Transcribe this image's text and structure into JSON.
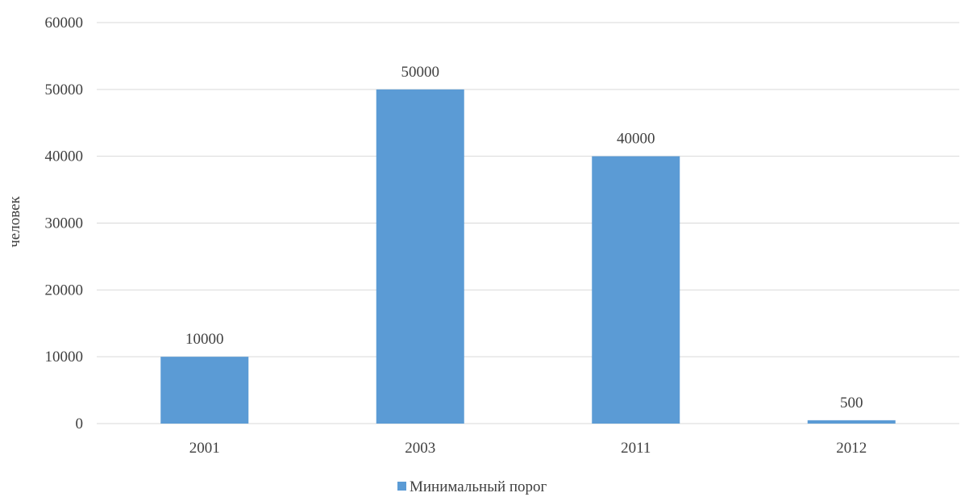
{
  "chart_data": {
    "type": "bar",
    "categories": [
      "2001",
      "2003",
      "2011",
      "2012"
    ],
    "series": [
      {
        "name": "Минимальный порог",
        "values": [
          10000,
          50000,
          40000,
          500
        ]
      }
    ],
    "data_labels": [
      "10000",
      "50000",
      "40000",
      "500"
    ],
    "ylabel": "человек",
    "xlabel": "",
    "ylim": [
      0,
      60000
    ],
    "yticks": [
      0,
      10000,
      20000,
      30000,
      40000,
      50000,
      60000
    ],
    "ytick_labels": [
      "0",
      "10000",
      "20000",
      "30000",
      "40000",
      "50000",
      "60000"
    ],
    "grid": true,
    "legend_position": "bottom",
    "colors": {
      "bar": "#5b9bd5",
      "grid": "#d9d9d9",
      "text": "#404040"
    }
  }
}
